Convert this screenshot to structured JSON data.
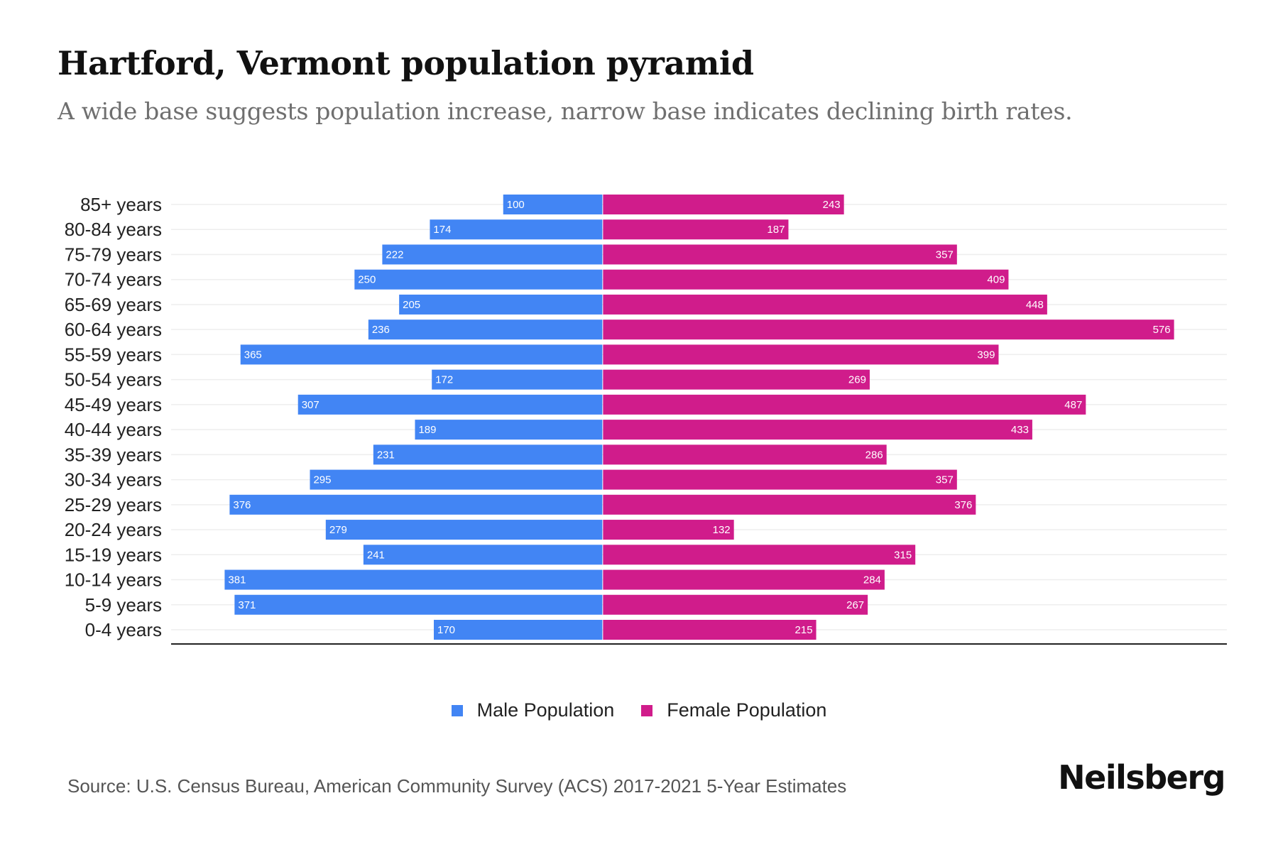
{
  "header": {
    "title": "Hartford, Vermont population pyramid",
    "subtitle": "A wide base suggests population increase, narrow base indicates declining birth rates."
  },
  "colors": {
    "male": "#4285f4",
    "female": "#d01c8b",
    "gridline": "#eeeeee",
    "axis": "#222222"
  },
  "chart_data": {
    "type": "bar",
    "orientation": "horizontal-diverging",
    "title": "Hartford, Vermont population pyramid",
    "subtitle": "A wide base suggests population increase, narrow base indicates declining birth rates.",
    "xlabel": "",
    "ylabel": "",
    "categories": [
      "85+ years",
      "80-84 years",
      "75-79 years",
      "70-74 years",
      "65-69 years",
      "60-64 years",
      "55-59 years",
      "50-54 years",
      "45-49 years",
      "40-44 years",
      "35-39 years",
      "30-34 years",
      "25-29 years",
      "20-24 years",
      "15-19 years",
      "10-14 years",
      "5-9 years",
      "0-4 years"
    ],
    "series": [
      {
        "name": "Male Population",
        "side": "left",
        "values": [
          100,
          174,
          222,
          250,
          205,
          236,
          365,
          172,
          307,
          189,
          231,
          295,
          376,
          279,
          241,
          381,
          371,
          170
        ]
      },
      {
        "name": "Female Population",
        "side": "right",
        "values": [
          243,
          187,
          357,
          409,
          448,
          576,
          399,
          269,
          487,
          433,
          286,
          357,
          376,
          132,
          315,
          284,
          267,
          215
        ]
      }
    ],
    "xlim": [
      -435,
      630
    ],
    "grid": true,
    "legend": "bottom-center",
    "data_labels": true
  },
  "legend": {
    "items": [
      {
        "label": "Male Population"
      },
      {
        "label": "Female Population"
      }
    ]
  },
  "footer": {
    "source": "Source: U.S. Census Bureau, American Community Survey (ACS) 2017-2021 5-Year Estimates",
    "brand": "Neilsberg"
  }
}
